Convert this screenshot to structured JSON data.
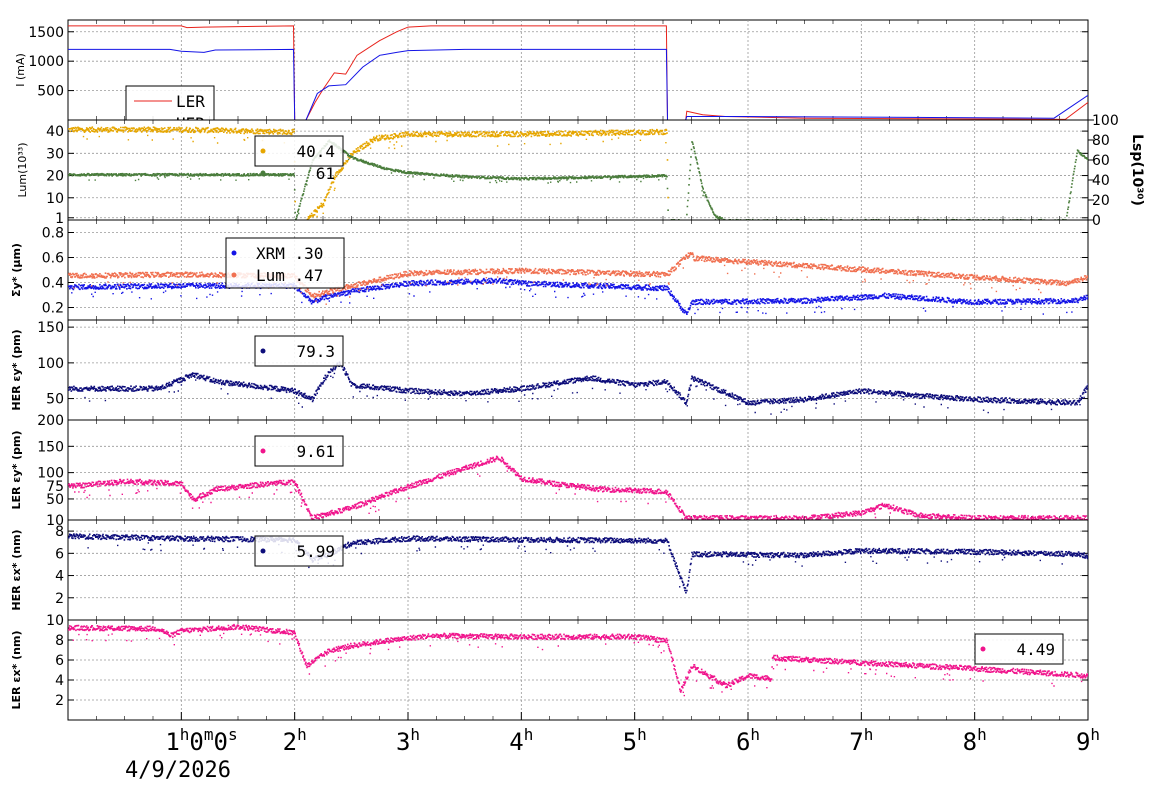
{
  "date_label": "4/9/2026",
  "x_axis": {
    "ticks": [
      {
        "value": 1,
        "main": "1",
        "sup": "h",
        "rest": "0",
        "sup2": "m",
        "rest2": "0",
        "sup3": "s"
      },
      {
        "value": 2,
        "main": "2",
        "sup": "h"
      },
      {
        "value": 3,
        "main": "3",
        "sup": "h"
      },
      {
        "value": 4,
        "main": "4",
        "sup": "h"
      },
      {
        "value": 5,
        "main": "5",
        "sup": "h"
      },
      {
        "value": 6,
        "main": "6",
        "sup": "h"
      },
      {
        "value": 7,
        "main": "7",
        "sup": "h"
      },
      {
        "value": 8,
        "main": "8",
        "sup": "h"
      },
      {
        "value": 9,
        "main": "9",
        "sup": "h"
      }
    ],
    "range_hours": [
      0,
      9
    ]
  },
  "chart_data": [
    {
      "type": "line",
      "ylabel": "I (mA)",
      "ylim": [
        0,
        1700
      ],
      "yticks": [
        500,
        1000,
        1500
      ],
      "legend": {
        "placement": "bottom-left",
        "entries": [
          "LER",
          "HER"
        ]
      },
      "series": [
        {
          "name": "LER",
          "color": "#e8231c",
          "points": [
            [
              0,
              1600
            ],
            [
              1.0,
              1600
            ],
            [
              1.05,
              1570
            ],
            [
              1.2,
              1580
            ],
            [
              1.99,
              1600
            ],
            [
              2.0,
              0
            ],
            [
              2.1,
              0
            ],
            [
              2.18,
              300
            ],
            [
              2.25,
              520
            ],
            [
              2.35,
              800
            ],
            [
              2.45,
              780
            ],
            [
              2.55,
              1100
            ],
            [
              2.75,
              1350
            ],
            [
              2.9,
              1500
            ],
            [
              3.0,
              1580
            ],
            [
              3.2,
              1600
            ],
            [
              5.28,
              1600
            ],
            [
              5.29,
              0
            ],
            [
              5.45,
              0
            ],
            [
              5.46,
              150
            ],
            [
              5.6,
              90
            ],
            [
              5.8,
              60
            ],
            [
              6.5,
              30
            ],
            [
              8.8,
              10
            ],
            [
              9.0,
              300
            ]
          ]
        },
        {
          "name": "HER",
          "color": "#1414e6",
          "points": [
            [
              0,
              1200
            ],
            [
              0.9,
              1200
            ],
            [
              1.0,
              1170
            ],
            [
              1.2,
              1150
            ],
            [
              1.3,
              1190
            ],
            [
              1.99,
              1200
            ],
            [
              2.0,
              0
            ],
            [
              2.1,
              0
            ],
            [
              2.2,
              450
            ],
            [
              2.3,
              580
            ],
            [
              2.45,
              600
            ],
            [
              2.6,
              900
            ],
            [
              2.75,
              1100
            ],
            [
              2.9,
              1150
            ],
            [
              3.0,
              1180
            ],
            [
              3.5,
              1200
            ],
            [
              5.28,
              1200
            ],
            [
              5.29,
              0
            ],
            [
              5.45,
              0
            ],
            [
              5.46,
              60
            ],
            [
              6.0,
              60
            ],
            [
              8.7,
              30
            ],
            [
              9.0,
              420
            ]
          ]
        }
      ]
    },
    {
      "type": "scatter",
      "ylabel": "Lum(10³³)",
      "ylim": [
        0,
        45
      ],
      "yticks": [
        1,
        10,
        20,
        30,
        40
      ],
      "y2label": "Lsp(10³⁰)",
      "y2lim": [
        0,
        100
      ],
      "y2ticks": [
        0,
        20,
        40,
        60,
        80,
        100
      ],
      "legend": {
        "placement": "top-left",
        "entries": [
          {
            "text": "40.4",
            "color": "#e6a600"
          },
          {
            "text": "61",
            "color": "#4a7d3c"
          }
        ]
      },
      "series": [
        {
          "name": "Lum",
          "color": "#e6a600",
          "points": [
            [
              0,
              41
            ],
            [
              1.0,
              41
            ],
            [
              1.99,
              40
            ],
            [
              2.0,
              0
            ],
            [
              2.1,
              0
            ],
            [
              2.25,
              8
            ],
            [
              2.35,
              20
            ],
            [
              2.5,
              30
            ],
            [
              2.7,
              37
            ],
            [
              3.0,
              39
            ],
            [
              4.0,
              39
            ],
            [
              5.28,
              40
            ],
            [
              5.29,
              0
            ],
            [
              9.0,
              0
            ]
          ]
        },
        {
          "name": "Lsp",
          "color": "#4a7d3c",
          "points": [
            [
              0,
              46
            ],
            [
              1.0,
              46
            ],
            [
              1.99,
              46
            ],
            [
              2.0,
              0
            ],
            [
              2.15,
              60
            ],
            [
              2.3,
              80
            ],
            [
              2.5,
              63
            ],
            [
              2.8,
              52
            ],
            [
              3.0,
              48
            ],
            [
              3.5,
              44
            ],
            [
              4.0,
              42
            ],
            [
              5.28,
              45
            ],
            [
              5.29,
              0
            ],
            [
              5.45,
              0
            ],
            [
              5.5,
              80
            ],
            [
              5.6,
              30
            ],
            [
              5.7,
              5
            ],
            [
              5.8,
              0
            ],
            [
              8.8,
              0
            ],
            [
              8.9,
              70
            ],
            [
              9.0,
              60
            ]
          ]
        }
      ]
    },
    {
      "type": "scatter",
      "ylabel": "Σy* (μm)",
      "ylim": [
        0.1,
        0.9
      ],
      "yticks": [
        0.2,
        0.4,
        0.6,
        0.8
      ],
      "legend": {
        "placement": "top-left",
        "entries": [
          {
            "text": "XRM",
            "value": ".30",
            "color": "#1414e6"
          },
          {
            "text": "Lum",
            "value": ".47",
            "color": "#f07050"
          }
        ]
      },
      "series": [
        {
          "name": "XRM",
          "color": "#1414e6",
          "points": [
            [
              0,
              0.37
            ],
            [
              1.0,
              0.38
            ],
            [
              1.99,
              0.38
            ],
            [
              2.15,
              0.25
            ],
            [
              2.3,
              0.3
            ],
            [
              2.6,
              0.35
            ],
            [
              3.0,
              0.4
            ],
            [
              3.8,
              0.42
            ],
            [
              4.0,
              0.4
            ],
            [
              5.28,
              0.36
            ],
            [
              5.45,
              0.15
            ],
            [
              5.5,
              0.25
            ],
            [
              6.5,
              0.26
            ],
            [
              7.2,
              0.3
            ],
            [
              8.0,
              0.25
            ],
            [
              8.9,
              0.26
            ],
            [
              9.0,
              0.3
            ]
          ]
        },
        {
          "name": "Lum",
          "color": "#f07050",
          "points": [
            [
              0,
              0.46
            ],
            [
              1.0,
              0.47
            ],
            [
              1.99,
              0.46
            ],
            [
              2.15,
              0.3
            ],
            [
              2.5,
              0.38
            ],
            [
              3.0,
              0.48
            ],
            [
              4.0,
              0.5
            ],
            [
              5.28,
              0.47
            ],
            [
              5.5,
              0.65
            ],
            [
              5.52,
              0.6
            ],
            [
              8.8,
              0.4
            ],
            [
              9.0,
              0.45
            ]
          ]
        }
      ]
    },
    {
      "type": "scatter",
      "ylabel": "HER εy* (pm)",
      "ylim": [
        20,
        160
      ],
      "yticks": [
        50,
        100,
        150
      ],
      "legend": {
        "placement": "top-left",
        "entries": [
          {
            "text": "79.3",
            "color": "#0d0d7a"
          }
        ]
      },
      "series": [
        {
          "name": "HER εy*",
          "color": "#0d0d7a",
          "points": [
            [
              0,
              65
            ],
            [
              0.8,
              65
            ],
            [
              1.1,
              85
            ],
            [
              1.3,
              75
            ],
            [
              1.99,
              62
            ],
            [
              2.15,
              50
            ],
            [
              2.3,
              90
            ],
            [
              2.4,
              100
            ],
            [
              2.5,
              70
            ],
            [
              3.0,
              62
            ],
            [
              3.5,
              58
            ],
            [
              4.0,
              65
            ],
            [
              4.6,
              80
            ],
            [
              5.0,
              70
            ],
            [
              5.28,
              75
            ],
            [
              5.45,
              45
            ],
            [
              5.5,
              80
            ],
            [
              6.0,
              45
            ],
            [
              6.5,
              50
            ],
            [
              7.0,
              62
            ],
            [
              7.5,
              55
            ],
            [
              8.0,
              50
            ],
            [
              8.9,
              45
            ],
            [
              9.0,
              70
            ]
          ]
        }
      ]
    },
    {
      "type": "scatter",
      "ylabel": "LER εy* (pm)",
      "ylim": [
        10,
        200
      ],
      "yticks": [
        10,
        50,
        75,
        100,
        150,
        200
      ],
      "legend": {
        "placement": "top-left",
        "entries": [
          {
            "text": "9.61",
            "color": "#f0148c"
          }
        ]
      },
      "series": [
        {
          "name": "LER εy*",
          "color": "#f0148c",
          "points": [
            [
              0,
              75
            ],
            [
              0.5,
              85
            ],
            [
              1.0,
              80
            ],
            [
              1.1,
              50
            ],
            [
              1.3,
              70
            ],
            [
              1.99,
              85
            ],
            [
              2.15,
              15
            ],
            [
              2.5,
              35
            ],
            [
              3.0,
              75
            ],
            [
              3.5,
              110
            ],
            [
              3.8,
              130
            ],
            [
              4.0,
              90
            ],
            [
              4.3,
              80
            ],
            [
              4.7,
              70
            ],
            [
              5.28,
              65
            ],
            [
              5.45,
              15
            ],
            [
              6.5,
              15
            ],
            [
              7.0,
              25
            ],
            [
              7.2,
              40
            ],
            [
              7.5,
              20
            ],
            [
              8.0,
              15
            ],
            [
              9.0,
              15
            ]
          ]
        }
      ]
    },
    {
      "type": "scatter",
      "ylabel": "HER εx* (nm)",
      "ylim": [
        0,
        9
      ],
      "yticks": [
        2,
        4,
        6,
        8
      ],
      "legend": {
        "placement": "top-left",
        "entries": [
          {
            "text": "5.99",
            "color": "#0d0d7a"
          }
        ]
      },
      "series": [
        {
          "name": "HER εx*",
          "color": "#0d0d7a",
          "points": [
            [
              0,
              7.6
            ],
            [
              1.0,
              7.4
            ],
            [
              1.99,
              7.3
            ],
            [
              2.15,
              5.5
            ],
            [
              2.3,
              6.0
            ],
            [
              2.5,
              7.0
            ],
            [
              3.0,
              7.4
            ],
            [
              4.0,
              7.3
            ],
            [
              5.28,
              7.2
            ],
            [
              5.45,
              2.5
            ],
            [
              5.5,
              6.0
            ],
            [
              6.5,
              5.9
            ],
            [
              7.0,
              6.3
            ],
            [
              8.0,
              6.2
            ],
            [
              8.9,
              6.0
            ],
            [
              9.0,
              5.8
            ]
          ]
        }
      ]
    },
    {
      "type": "scatter",
      "ylabel": "LER εx* (nm)",
      "ylim": [
        0,
        10
      ],
      "yticks": [
        2,
        4,
        6,
        8,
        10
      ],
      "legend": {
        "placement": "top-right",
        "entries": [
          {
            "text": "4.49",
            "color": "#f0148c"
          }
        ]
      },
      "series": [
        {
          "name": "LER εx*",
          "color": "#f0148c",
          "points": [
            [
              0,
              9.3
            ],
            [
              0.8,
              9.2
            ],
            [
              0.9,
              8.5
            ],
            [
              1.0,
              9.0
            ],
            [
              1.5,
              9.4
            ],
            [
              1.99,
              8.8
            ],
            [
              2.1,
              5.5
            ],
            [
              2.3,
              7.0
            ],
            [
              2.5,
              7.5
            ],
            [
              2.8,
              8.0
            ],
            [
              3.2,
              8.5
            ],
            [
              4.0,
              8.4
            ],
            [
              5.0,
              8.4
            ],
            [
              5.28,
              8.0
            ],
            [
              5.4,
              3.0
            ],
            [
              5.5,
              5.5
            ],
            [
              5.8,
              3.5
            ],
            [
              6.0,
              4.5
            ],
            [
              6.2,
              4.2
            ],
            [
              6.21,
              6.3
            ],
            [
              7.0,
              5.8
            ],
            [
              8.0,
              5.2
            ],
            [
              9.0,
              4.5
            ]
          ]
        }
      ]
    }
  ]
}
